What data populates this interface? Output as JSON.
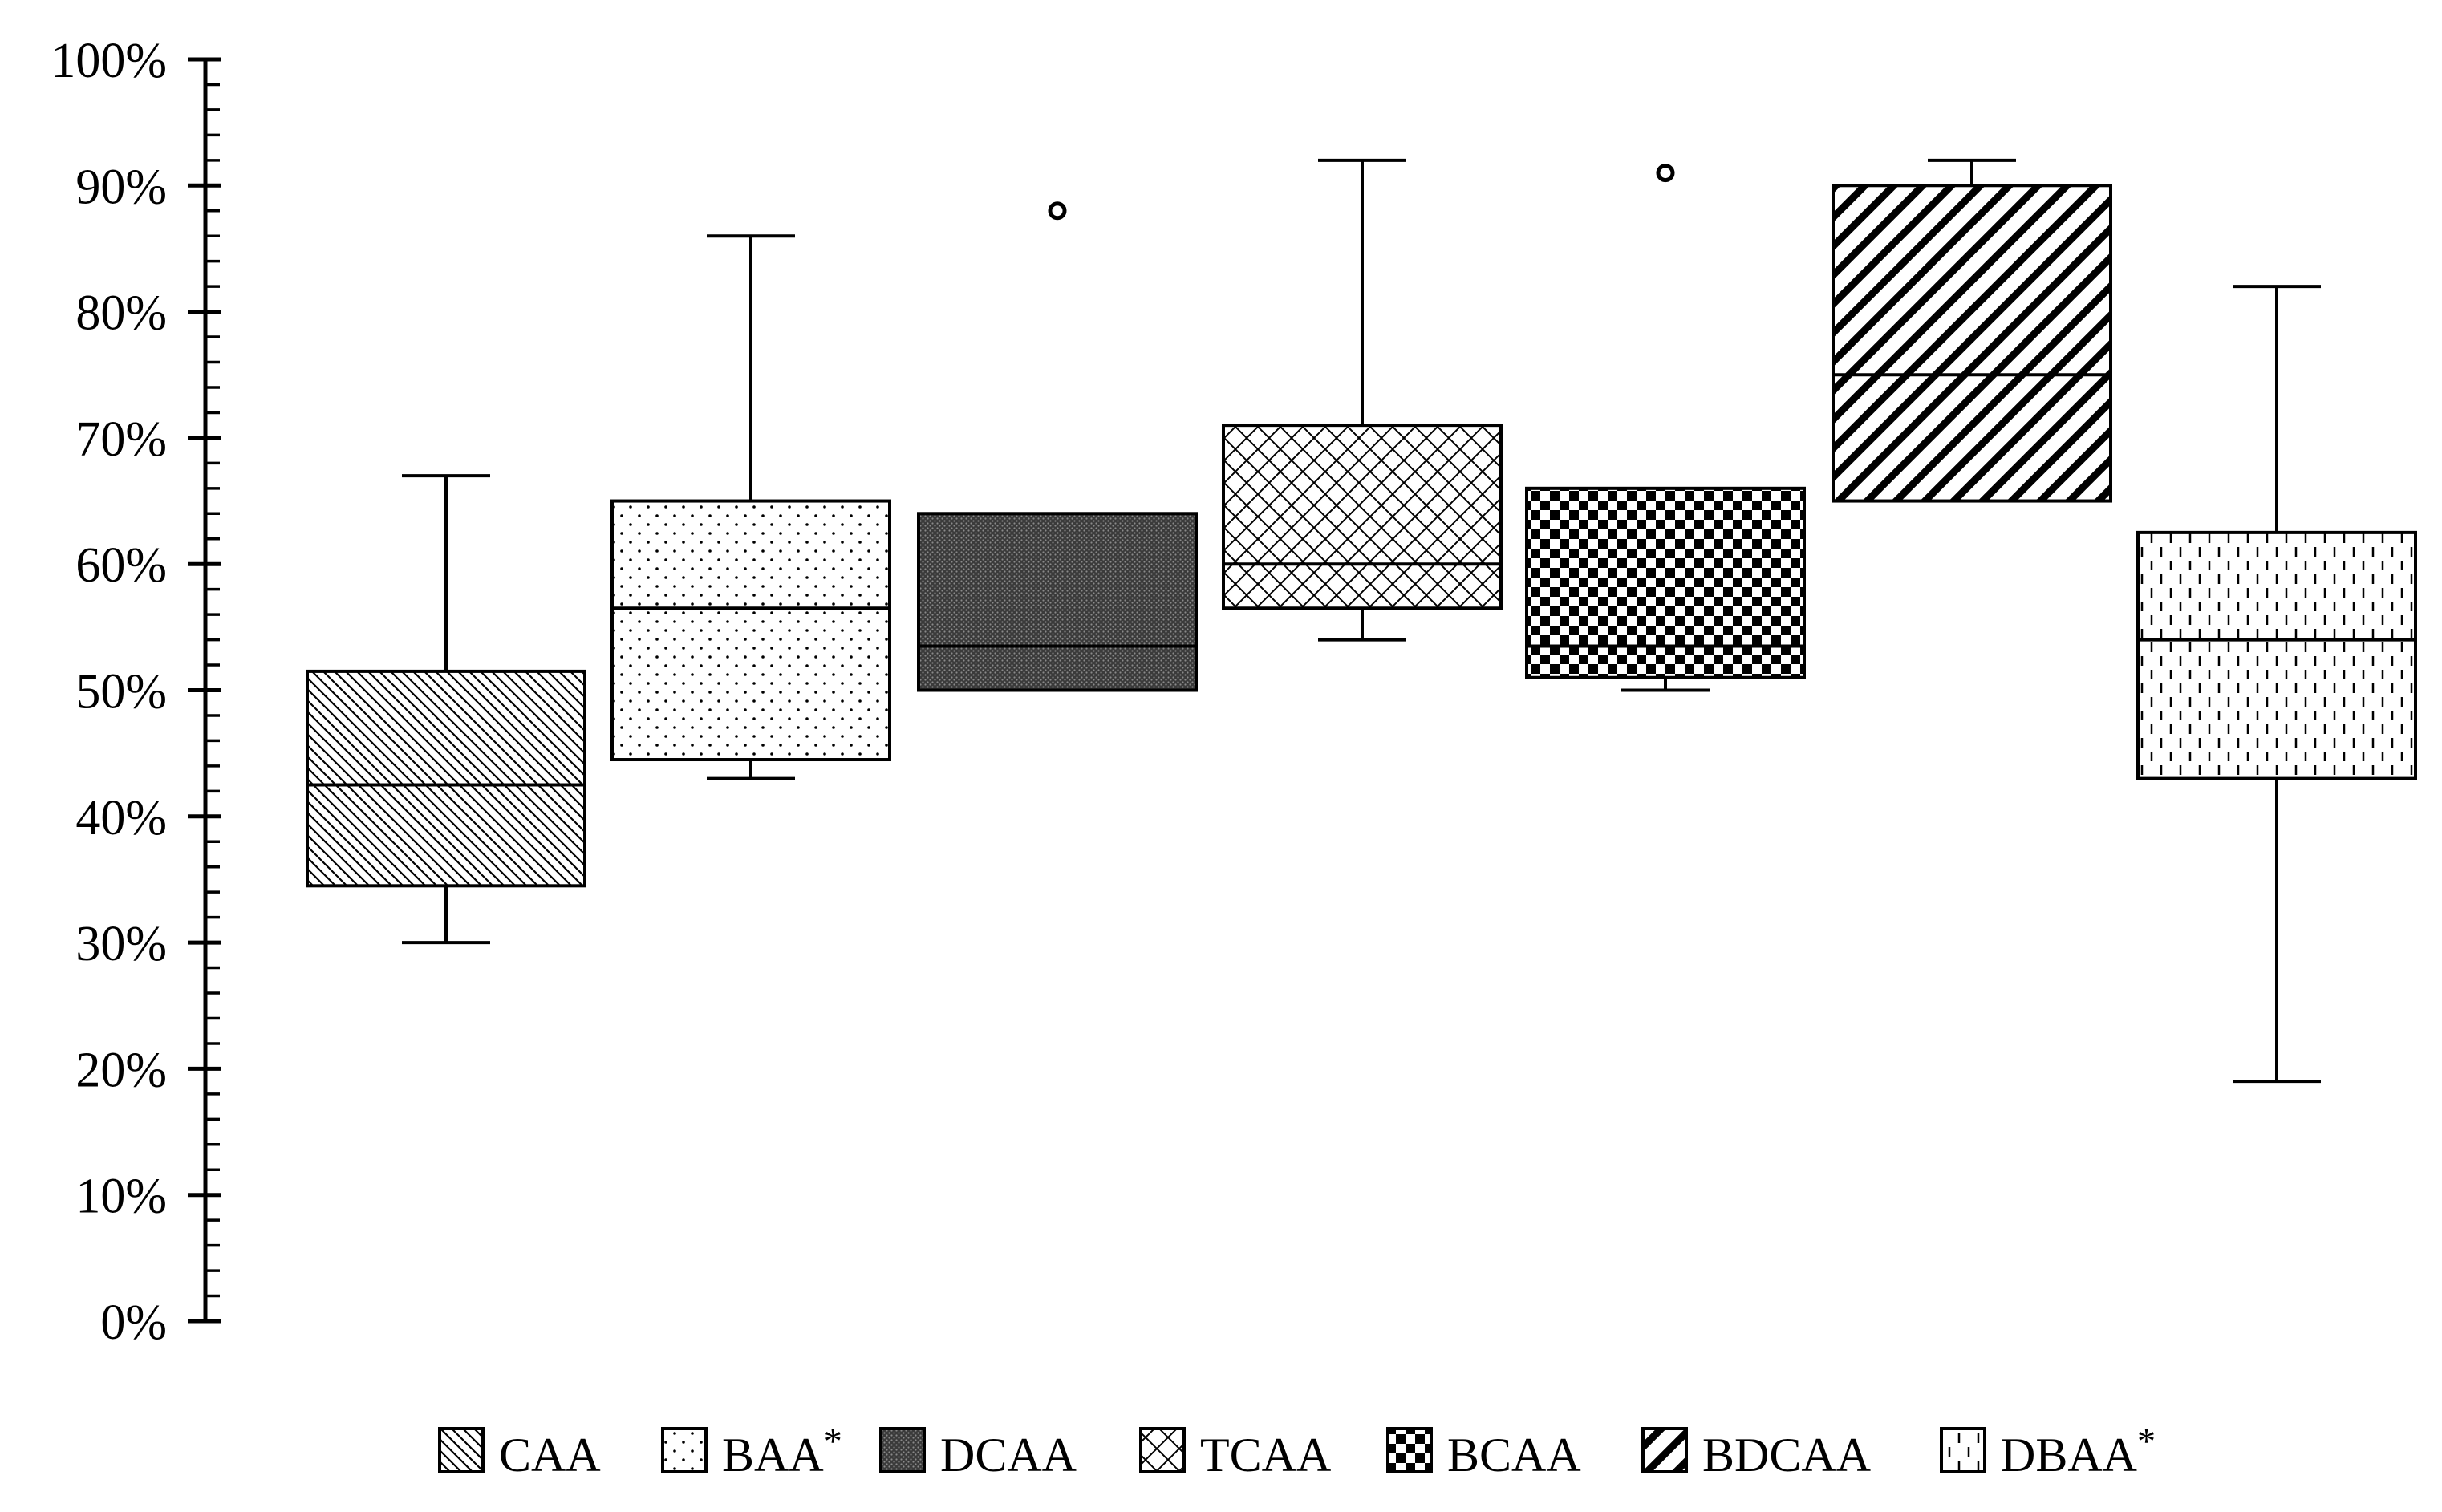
{
  "chart_data": {
    "type": "boxplot",
    "title": "",
    "xlabel": "",
    "ylabel": "",
    "ylim": [
      0,
      100
    ],
    "y_ticks": [
      "0%",
      "10%",
      "20%",
      "30%",
      "40%",
      "50%",
      "60%",
      "70%",
      "80%",
      "90%",
      "100%"
    ],
    "y_tick_values": [
      0,
      10,
      20,
      30,
      40,
      50,
      60,
      70,
      80,
      90,
      100
    ],
    "grid": false,
    "legend_position": "bottom",
    "series": [
      {
        "name": "CAA",
        "sup": "",
        "pattern": "diag-back-thin",
        "min": 30,
        "q1": 34.5,
        "median": 42.5,
        "q3": 51.5,
        "max": 67,
        "outliers": []
      },
      {
        "name": "BAA",
        "sup": "*",
        "pattern": "sparse-dots",
        "min": 43,
        "q1": 44.5,
        "median": 56.5,
        "q3": 65,
        "max": 86,
        "outliers": []
      },
      {
        "name": "DCAA",
        "sup": "",
        "pattern": "dense-dark",
        "min": 50,
        "q1": 50,
        "median": 53.5,
        "q3": 64,
        "max": 64,
        "outliers": [
          88
        ]
      },
      {
        "name": "TCAA",
        "sup": "",
        "pattern": "crosshatch",
        "min": 54,
        "q1": 56.5,
        "median": 60,
        "q3": 71,
        "max": 92,
        "outliers": []
      },
      {
        "name": "BCAA",
        "sup": "",
        "pattern": "checker",
        "min": 50,
        "q1": 51,
        "median": 53.5,
        "q3": 66,
        "max": 66,
        "outliers": [
          91
        ]
      },
      {
        "name": "BDCAA",
        "sup": "",
        "pattern": "diag-forward-thick",
        "min": 65,
        "q1": 65,
        "median": 75,
        "q3": 90,
        "max": 92,
        "outliers": []
      },
      {
        "name": "DBAA",
        "sup": "*",
        "pattern": "vertical-dashes",
        "min": 19,
        "q1": 43,
        "median": 54,
        "q3": 62.5,
        "max": 82,
        "outliers": []
      }
    ]
  }
}
